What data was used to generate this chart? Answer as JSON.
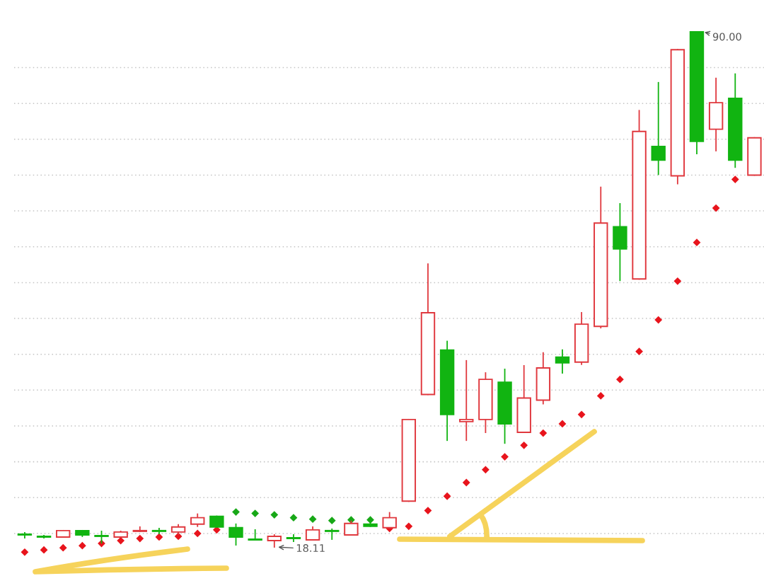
{
  "chart_data": {
    "type": "candlestick",
    "categories": [
      null,
      null,
      null,
      null,
      null,
      null,
      null,
      null,
      null,
      null,
      null,
      null,
      null,
      null,
      null,
      null,
      null,
      null,
      null,
      null,
      null,
      null,
      null,
      null,
      null,
      null,
      null,
      null,
      null,
      null,
      null,
      null,
      null,
      null,
      null,
      null,
      null,
      null,
      null
    ],
    "ohlc": [
      [
        19.9,
        20.1,
        19.4,
        19.8
      ],
      [
        19.6,
        19.7,
        19.4,
        19.5
      ],
      [
        19.5,
        20.4,
        19.5,
        20.4
      ],
      [
        20.4,
        20.4,
        19.6,
        19.8
      ],
      [
        19.7,
        20.3,
        18.7,
        19.6
      ],
      [
        19.5,
        20.3,
        19.5,
        20.2
      ],
      [
        20.3,
        20.9,
        20.3,
        20.4
      ],
      [
        20.4,
        20.7,
        20.0,
        20.3
      ],
      [
        20.2,
        21.2,
        19.9,
        20.9
      ],
      [
        21.3,
        22.7,
        21.0,
        22.2
      ],
      [
        22.4,
        22.4,
        20.9,
        20.9
      ],
      [
        20.8,
        21.3,
        18.4,
        19.5
      ],
      [
        19.2,
        20.5,
        19.1,
        19.1
      ],
      [
        19.0,
        19.8,
        18.11,
        19.6
      ],
      [
        19.4,
        19.8,
        18.9,
        19.3
      ],
      [
        19.1,
        20.9,
        19.1,
        20.5
      ],
      [
        20.4,
        20.6,
        19.2,
        20.3
      ],
      [
        19.8,
        21.7,
        19.8,
        21.4
      ],
      [
        21.3,
        21.8,
        21.0,
        21.0
      ],
      [
        20.8,
        22.9,
        20.8,
        22.2
      ],
      [
        24.5,
        35.9,
        24.5,
        35.9
      ],
      [
        39.4,
        57.6,
        39.4,
        50.8
      ],
      [
        45.6,
        46.8,
        33.0,
        36.6
      ],
      [
        35.6,
        44.1,
        33.0,
        35.9
      ],
      [
        35.9,
        42.4,
        34.1,
        41.5
      ],
      [
        41.1,
        42.9,
        32.6,
        35.3
      ],
      [
        34.1,
        43.4,
        34.1,
        38.9
      ],
      [
        38.6,
        45.2,
        38.1,
        43.1
      ],
      [
        44.6,
        45.6,
        42.4,
        43.8
      ],
      [
        43.9,
        50.8,
        43.6,
        49.2
      ],
      [
        48.9,
        68.3,
        48.7,
        63.3
      ],
      [
        62.8,
        66.0,
        55.3,
        59.7
      ],
      [
        55.5,
        79.0,
        55.5,
        76.1
      ],
      [
        74.0,
        82.9,
        70.1,
        72.1
      ],
      [
        69.9,
        87.5,
        68.8,
        87.5
      ],
      [
        90.0,
        90.0,
        73.0,
        74.7
      ],
      [
        76.4,
        83.5,
        73.4,
        80.1
      ],
      [
        80.7,
        84.1,
        71.1,
        72.1
      ],
      [
        70.0,
        75.2,
        70.0,
        75.2
      ]
    ],
    "colors": [
      "#11b411",
      "#11b411",
      "#e0383e",
      "#11b411",
      "#11b411",
      "#e0383e",
      "#e0383e",
      "#11b411",
      "#e0383e",
      "#e0383e",
      "#11b411",
      "#11b411",
      "#11b411",
      "#e0383e",
      "#11b411",
      "#e0383e",
      "#11b411",
      "#e0383e",
      "#11b411",
      "#e0383e",
      "#e0383e",
      "#e0383e",
      "#11b411",
      "#e0383e",
      "#e0383e",
      "#11b411",
      "#e0383e",
      "#e0383e",
      "#11b411",
      "#e0383e",
      "#e0383e",
      "#11b411",
      "#e0383e",
      "#11b411",
      "#e0383e",
      "#11b411",
      "#e0383e",
      "#11b411",
      "#e0383e"
    ],
    "series": [
      {
        "type": "scatter",
        "marker": "diamond",
        "values": [
          17.4,
          17.7,
          18.0,
          18.3,
          18.6,
          19.0,
          19.3,
          19.5,
          19.6,
          20.0,
          20.5,
          23.0,
          22.8,
          22.6,
          22.2,
          22.0,
          21.8,
          21.9,
          21.9,
          20.7,
          21.0,
          23.2,
          25.2,
          27.1,
          28.9,
          30.7,
          32.3,
          34.0,
          35.3,
          36.6,
          39.2,
          41.5,
          45.4,
          49.8,
          55.2,
          60.6,
          65.4,
          69.4,
          null
        ],
        "colors": [
          "#e8141c",
          "#e8141c",
          "#e8141c",
          "#e8141c",
          "#e8141c",
          "#e8141c",
          "#e8141c",
          "#e8141c",
          "#e8141c",
          "#e8141c",
          "#e8141c",
          "#17a817",
          "#17a817",
          "#17a817",
          "#17a817",
          "#17a817",
          "#17a817",
          "#17a817",
          "#17a817",
          "#e8141c",
          "#e8141c",
          "#e8141c",
          "#e8141c",
          "#e8141c",
          "#e8141c",
          "#e8141c",
          "#e8141c",
          "#e8141c",
          "#e8141c",
          "#e8141c",
          "#e8141c",
          "#e8141c",
          "#e8141c",
          "#e8141c",
          "#e8141c",
          "#e8141c",
          "#e8141c",
          "#e8141c",
          null
        ]
      }
    ],
    "yticks": [
      {
        "value": 20,
        "label": null
      },
      {
        "value": 25,
        "label": null
      },
      {
        "value": 30,
        "label": null
      },
      {
        "value": 35,
        "label": null
      },
      {
        "value": 40,
        "label": null
      },
      {
        "value": 45,
        "label": null
      },
      {
        "value": 50,
        "label": null
      },
      {
        "value": 55,
        "label": null
      },
      {
        "value": 60,
        "label": null
      },
      {
        "value": 65,
        "label": null
      },
      {
        "value": 70,
        "label": null
      },
      {
        "value": 75,
        "label": null
      },
      {
        "value": 80,
        "label": null
      },
      {
        "value": 85,
        "label": null
      }
    ],
    "grid": "y",
    "annotations": [
      "90.00",
      "18.11"
    ]
  }
}
